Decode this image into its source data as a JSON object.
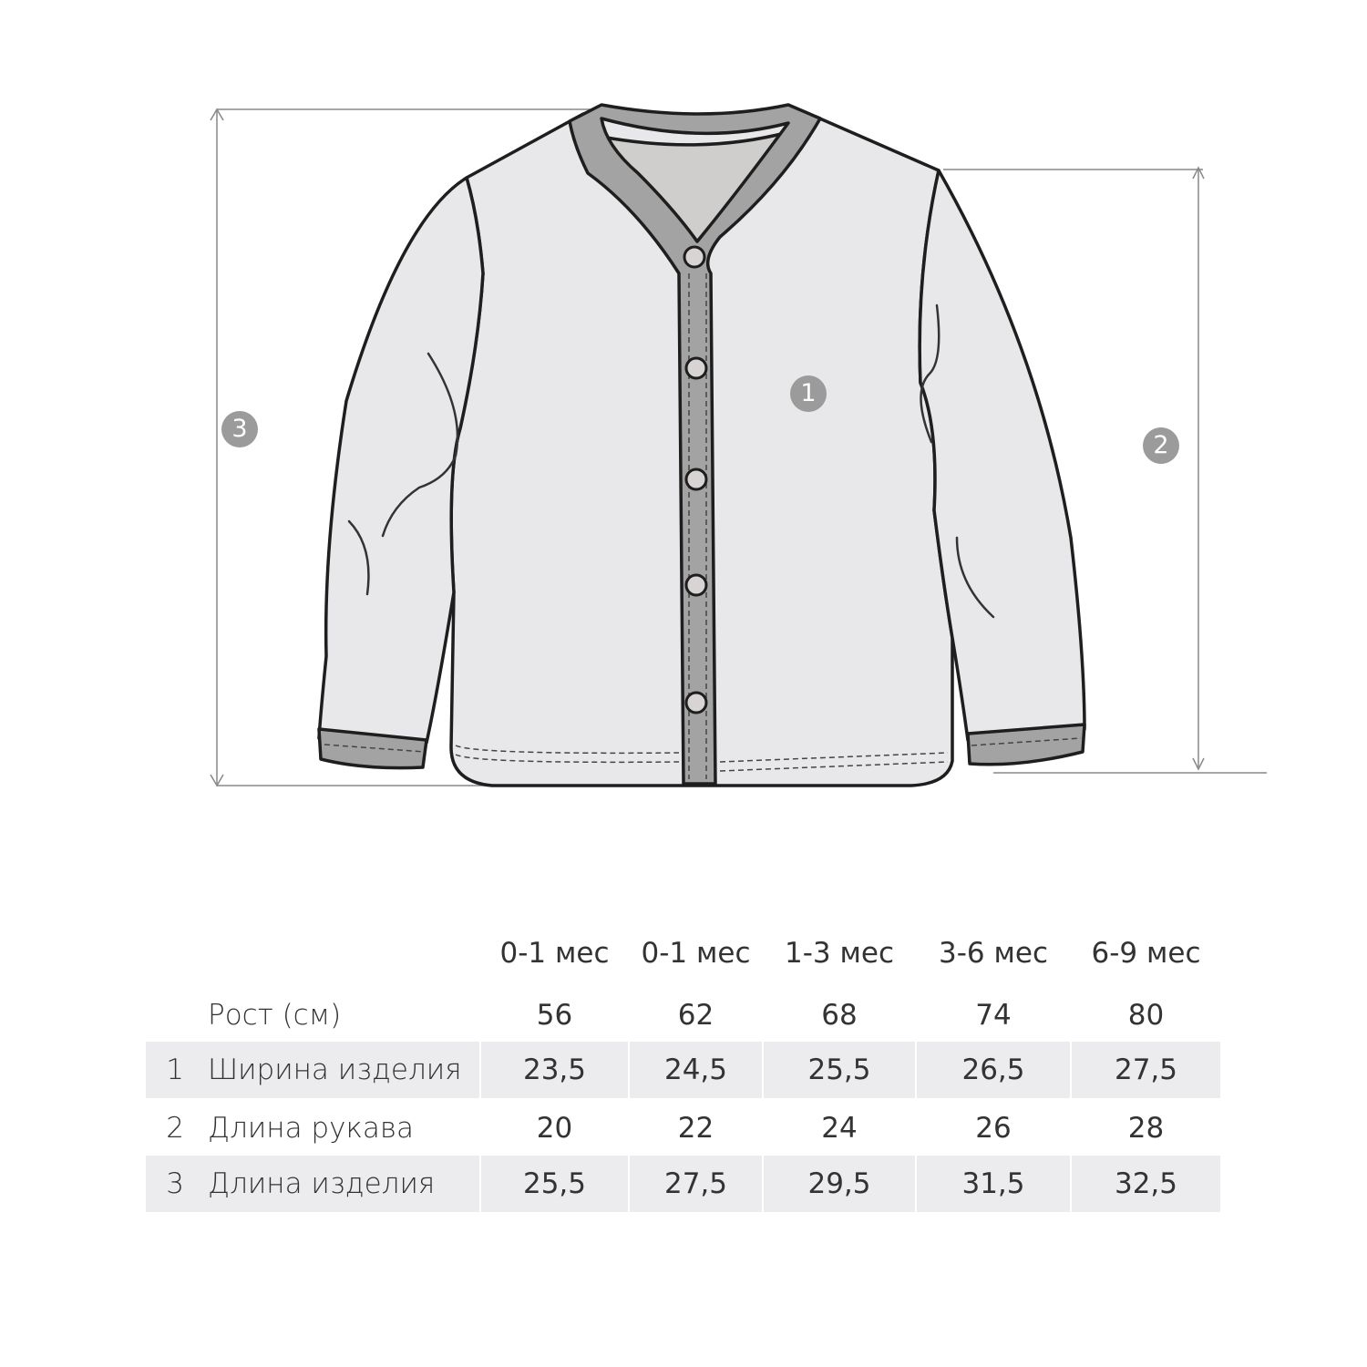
{
  "colors": {
    "garment_fill": "#e8e8ea",
    "trim": "#a3a3a3",
    "outline": "#1e1e1e",
    "badge": "#9b9b9b",
    "row_shade": "#ececef"
  },
  "diagram": {
    "badges": [
      "1",
      "2",
      "3"
    ]
  },
  "table": {
    "columns": [
      "0-1 мес",
      "0-1 мес",
      "1-3 мес",
      "3-6 мес",
      "6-9 мес"
    ],
    "height_row": {
      "label": "Рост (см)",
      "values": [
        "56",
        "62",
        "68",
        "74",
        "80"
      ]
    },
    "rows": [
      {
        "num": "1",
        "label": "Ширина изделия",
        "values": [
          "23,5",
          "24,5",
          "25,5",
          "26,5",
          "27,5"
        ]
      },
      {
        "num": "2",
        "label": "Длина рукава",
        "values": [
          "20",
          "22",
          "24",
          "26",
          "28"
        ]
      },
      {
        "num": "3",
        "label": "Длина изделия",
        "values": [
          "25,5",
          "27,5",
          "29,5",
          "31,5",
          "32,5"
        ]
      }
    ]
  }
}
